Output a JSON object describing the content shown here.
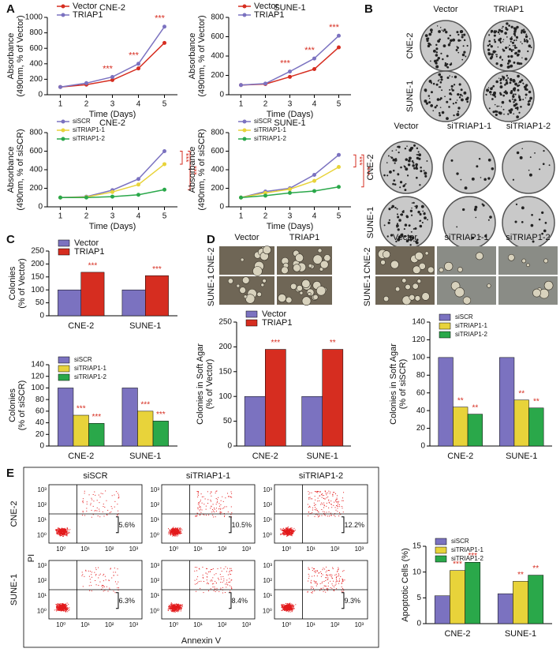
{
  "panel_labels": [
    "A",
    "B",
    "C",
    "D",
    "E"
  ],
  "chart_data": [
    {
      "type": "line",
      "title": "CNE-2",
      "xlabel": "Time (Days)",
      "ylabel": [
        "Absorbance",
        "(490nm, % of Vector)"
      ],
      "x": [
        1,
        2,
        3,
        4,
        5
      ],
      "xlim": [
        0.5,
        5.5
      ],
      "xticks": [
        1,
        2,
        3,
        4,
        5
      ],
      "ylim": [
        0,
        1000
      ],
      "yticks": [
        0,
        200,
        400,
        600,
        800,
        1000
      ],
      "series": [
        {
          "name": "Vector",
          "color": "#d62d20",
          "values": [
            100,
            130,
            190,
            340,
            670
          ]
        },
        {
          "name": "TRIAP1",
          "color": "#7b72c0",
          "values": [
            100,
            150,
            230,
            400,
            880
          ],
          "annotations": [
            null,
            null,
            "***",
            "***",
            "***"
          ]
        }
      ]
    },
    {
      "type": "line",
      "title": "SUNE-1",
      "xlabel": "Time (Days)",
      "ylabel": [
        "Absorbance",
        "(490nm, % of Vector)"
      ],
      "x": [
        1,
        2,
        3,
        4,
        5
      ],
      "xlim": [
        0.5,
        5.5
      ],
      "xticks": [
        1,
        2,
        3,
        4,
        5
      ],
      "ylim": [
        0,
        800
      ],
      "yticks": [
        0,
        200,
        400,
        600,
        800
      ],
      "series": [
        {
          "name": "Vector",
          "color": "#d62d20",
          "values": [
            100,
            110,
            185,
            265,
            490
          ]
        },
        {
          "name": "TRIAP1",
          "color": "#7b72c0",
          "values": [
            100,
            115,
            240,
            375,
            610
          ],
          "annotations": [
            null,
            null,
            "***",
            "***",
            "***"
          ]
        }
      ]
    },
    {
      "type": "line",
      "title": "CNE-2",
      "xlabel": "Time (Days)",
      "ylabel": [
        "Absorbance",
        "(490nm, % of siSCR)"
      ],
      "x": [
        1,
        2,
        3,
        4,
        5
      ],
      "xlim": [
        0.5,
        5.5
      ],
      "xticks": [
        1,
        2,
        3,
        4,
        5
      ],
      "ylim": [
        0,
        800
      ],
      "yticks": [
        0,
        200,
        400,
        600,
        800
      ],
      "annotations": [
        "***",
        "***"
      ],
      "series": [
        {
          "name": "siSCR",
          "color": "#7b72c0",
          "values": [
            100,
            110,
            180,
            300,
            600
          ]
        },
        {
          "name": "siTRIAP1-1",
          "color": "#e8d33a",
          "values": [
            100,
            105,
            160,
            240,
            460
          ]
        },
        {
          "name": "siTRIAP1-2",
          "color": "#2aa84a",
          "values": [
            100,
            100,
            110,
            130,
            185
          ]
        }
      ]
    },
    {
      "type": "line",
      "title": "SUNE-1",
      "xlabel": "Time (Days)",
      "ylabel": [
        "Absorbance",
        "(490nm, % of siSCR)"
      ],
      "x": [
        1,
        2,
        3,
        4,
        5
      ],
      "xlim": [
        0.5,
        5.5
      ],
      "xticks": [
        1,
        2,
        3,
        4,
        5
      ],
      "ylim": [
        0,
        800
      ],
      "yticks": [
        0,
        200,
        400,
        600,
        800
      ],
      "annotations": [
        "***",
        "***"
      ],
      "series": [
        {
          "name": "siSCR",
          "color": "#7b72c0",
          "values": [
            100,
            165,
            200,
            345,
            560
          ]
        },
        {
          "name": "siTRIAP1-1",
          "color": "#e8d33a",
          "values": [
            100,
            150,
            190,
            280,
            430
          ]
        },
        {
          "name": "siTRIAP1-2",
          "color": "#2aa84a",
          "values": [
            100,
            120,
            150,
            170,
            215
          ]
        }
      ]
    },
    {
      "type": "bar",
      "ylabel": [
        "Colonies",
        "(% of Vector)"
      ],
      "categories": [
        "CNE-2",
        "SUNE-1"
      ],
      "ylim": [
        0,
        250
      ],
      "yticks": [
        0,
        50,
        100,
        150,
        200,
        250
      ],
      "series": [
        {
          "name": "Vector",
          "color": "#7b72c0",
          "values": [
            100,
            100
          ]
        },
        {
          "name": "TRIAP1",
          "color": "#d62d20",
          "values": [
            168,
            155
          ],
          "annotations": [
            "***",
            "***"
          ]
        }
      ]
    },
    {
      "type": "bar",
      "ylabel": [
        "Colonies",
        "(% of siSCR)"
      ],
      "categories": [
        "CNE-2",
        "SUNE-1"
      ],
      "ylim": [
        0,
        140
      ],
      "yticks": [
        0,
        20,
        40,
        60,
        80,
        100,
        120,
        140
      ],
      "series": [
        {
          "name": "siSCR",
          "color": "#7b72c0",
          "values": [
            100,
            100
          ]
        },
        {
          "name": "siTRIAP1-1",
          "color": "#e8d33a",
          "values": [
            53,
            60
          ],
          "annotations": [
            "***",
            "***"
          ]
        },
        {
          "name": "siTRIAP1-2",
          "color": "#2aa84a",
          "values": [
            39,
            43
          ],
          "annotations": [
            "***",
            "***"
          ]
        }
      ]
    },
    {
      "type": "bar",
      "ylabel": [
        "Colonies in Soft Agar",
        "(% of Vector)"
      ],
      "categories": [
        "CNE-2",
        "SUNE-1"
      ],
      "ylim": [
        0,
        250
      ],
      "yticks": [
        0,
        50,
        100,
        150,
        200,
        250
      ],
      "series": [
        {
          "name": "Vector",
          "color": "#7b72c0",
          "values": [
            100,
            100
          ]
        },
        {
          "name": "TRIAP1",
          "color": "#d62d20",
          "values": [
            195,
            195
          ],
          "annotations": [
            "***",
            "**"
          ]
        }
      ]
    },
    {
      "type": "bar",
      "ylabel": [
        "Colonies in Soft Agar",
        "(% of siSCR)"
      ],
      "categories": [
        "CNE-2",
        "SUNE-1"
      ],
      "ylim": [
        0,
        140
      ],
      "yticks": [
        0,
        20,
        40,
        60,
        80,
        100,
        120,
        140
      ],
      "series": [
        {
          "name": "siSCR",
          "color": "#7b72c0",
          "values": [
            100,
            100
          ]
        },
        {
          "name": "siTRIAP1-1",
          "color": "#e8d33a",
          "values": [
            44,
            52
          ],
          "annotations": [
            "**",
            "**"
          ]
        },
        {
          "name": "siTRIAP1-2",
          "color": "#2aa84a",
          "values": [
            36,
            43
          ],
          "annotations": [
            "**",
            "**"
          ]
        }
      ]
    },
    {
      "type": "bar",
      "ylabel": [
        "Apoptotic Cells (%)"
      ],
      "categories": [
        "CNE-2",
        "SUNE-1"
      ],
      "ylim": [
        0,
        15
      ],
      "yticks": [
        0,
        5,
        10,
        15
      ],
      "series": [
        {
          "name": "siSCR",
          "color": "#7b72c0",
          "values": [
            5.4,
            5.8
          ]
        },
        {
          "name": "siTRIAP1-1",
          "color": "#e8d33a",
          "values": [
            10.3,
            8.2
          ],
          "annotations": [
            "***",
            "**"
          ]
        },
        {
          "name": "siTRIAP1-2",
          "color": "#2aa84a",
          "values": [
            11.9,
            9.4
          ],
          "annotations": [
            "***",
            "**"
          ]
        }
      ]
    }
  ],
  "colony_assay": {
    "overexpression": {
      "columns": [
        "Vector",
        "TRIAP1"
      ],
      "rows": [
        "CNE-2",
        "SUNE-1"
      ]
    },
    "knockdown": {
      "columns": [
        "Vector",
        "siTRIAP1-1",
        "siTRIAP1-2"
      ],
      "rows": [
        "CNE-2",
        "SUNE-1"
      ]
    }
  },
  "soft_agar": {
    "overexpression": {
      "columns": [
        "Vector",
        "TRIAP1"
      ],
      "rows": [
        "CNE-2",
        "SUNE-1"
      ]
    },
    "knockdown": {
      "columns": [
        "Vector",
        "siTRIAP1-1",
        "siTRIAP1-2"
      ],
      "rows": [
        "CNE-2",
        "SUNE-1"
      ]
    }
  },
  "flow": {
    "columns": [
      "siSCR",
      "siTRIAP1-1",
      "siTRIAP1-2"
    ],
    "rows": [
      "CNE-2",
      "SUNE-1"
    ],
    "percents": [
      [
        "5.6%",
        "10.5%",
        "12.2%"
      ],
      [
        "6.3%",
        "8.4%",
        "9.3%"
      ]
    ],
    "ticks": [
      "10⁰",
      "10¹",
      "10²",
      "10³"
    ],
    "xlabel": "Annexin V",
    "ylabel": "PI"
  }
}
